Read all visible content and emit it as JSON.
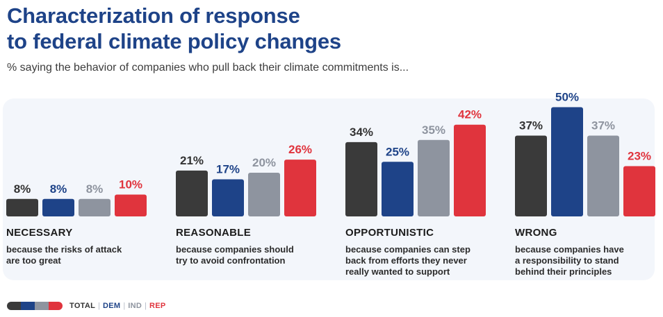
{
  "title_line1": "Characterization of response",
  "title_line2": "to federal climate policy changes",
  "subtitle": "% saying the behavior of companies who pull back their climate commitments is...",
  "colors": {
    "total": "#3a3a3a",
    "dem": "#1e4388",
    "ind": "#8e949f",
    "rep": "#e0343d",
    "title": "#1e4388",
    "panel": "#f3f6fb"
  },
  "legend": [
    {
      "label": "TOTAL",
      "color": "#3a3a3a",
      "text_color": "#333333"
    },
    {
      "label": "DEM",
      "color": "#1e4388",
      "text_color": "#1e4388"
    },
    {
      "label": "IND",
      "color": "#8e949f",
      "text_color": "#8e949f"
    },
    {
      "label": "REP",
      "color": "#e0343d",
      "text_color": "#e0343d"
    }
  ],
  "chart_data": {
    "type": "bar",
    "title": "Characterization of response to federal climate policy changes",
    "subtitle": "% saying the behavior of companies who pull back their climate commitments is...",
    "ylim": [
      0,
      50
    ],
    "grid": false,
    "legend_position": "bottom-left",
    "categories": [
      {
        "name": "NECESSARY",
        "description_lines": [
          "because the risks of attack",
          "are too great"
        ]
      },
      {
        "name": "REASONABLE",
        "description_lines": [
          "because companies should",
          "try to avoid confrontation"
        ]
      },
      {
        "name": "OPPORTUNISTIC",
        "description_lines": [
          "because companies can step",
          "back from efforts they never",
          "really wanted to support"
        ]
      },
      {
        "name": "WRONG",
        "description_lines": [
          "because companies have",
          "a responsibility to stand",
          "behind their principles"
        ]
      }
    ],
    "series": [
      {
        "name": "TOTAL",
        "color": "#3a3a3a",
        "label_color": "#333333",
        "values": [
          8,
          21,
          34,
          37
        ]
      },
      {
        "name": "DEM",
        "color": "#1e4388",
        "label_color": "#1e4388",
        "values": [
          8,
          17,
          25,
          50
        ]
      },
      {
        "name": "IND",
        "color": "#8e949f",
        "label_color": "#8e949f",
        "values": [
          8,
          20,
          35,
          37
        ]
      },
      {
        "name": "REP",
        "color": "#e0343d",
        "label_color": "#e0343d",
        "values": [
          10,
          26,
          42,
          23
        ]
      }
    ]
  }
}
